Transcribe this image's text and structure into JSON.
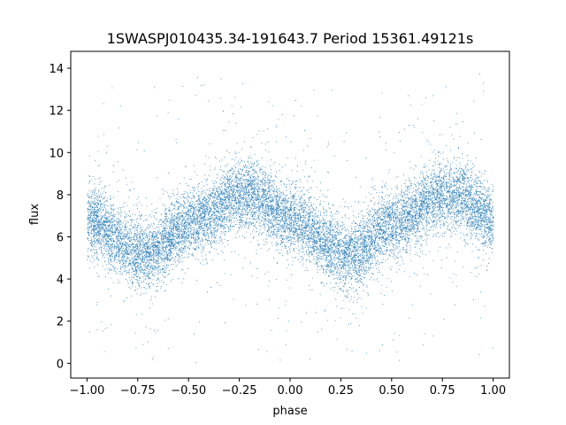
{
  "chart_data": {
    "type": "scatter",
    "title": "1SWASPJ010435.34-191643.7 Period 15361.49121s",
    "xlabel": "phase",
    "ylabel": "flux",
    "xlim": [
      -1.08,
      1.08
    ],
    "ylim": [
      -0.7,
      14.8
    ],
    "xticks": [
      -1.0,
      -0.75,
      -0.5,
      -0.25,
      0.0,
      0.25,
      0.5,
      0.75,
      1.0
    ],
    "xtick_labels": [
      "−1.00",
      "−0.75",
      "−0.50",
      "−0.25",
      "0.00",
      "0.25",
      "0.50",
      "0.75",
      "1.00"
    ],
    "yticks": [
      0,
      2,
      4,
      6,
      8,
      10,
      12,
      14
    ],
    "ytick_labels": [
      "0",
      "2",
      "4",
      "6",
      "8",
      "10",
      "12",
      "14"
    ],
    "grid": false,
    "marker_color": "#1f77b4",
    "series": [
      {
        "description_trend": [
          {
            "x": -1.0,
            "y": 6.8
          },
          {
            "x": -0.75,
            "y": 5.3
          },
          {
            "x": -0.7,
            "y": 5.2
          },
          {
            "x": -0.5,
            "y": 6.6
          },
          {
            "x": -0.25,
            "y": 7.9
          },
          {
            "x": -0.2,
            "y": 8.0
          },
          {
            "x": 0.0,
            "y": 6.8
          },
          {
            "x": 0.25,
            "y": 5.3
          },
          {
            "x": 0.3,
            "y": 5.2
          },
          {
            "x": 0.5,
            "y": 6.6
          },
          {
            "x": 0.75,
            "y": 7.9
          },
          {
            "x": 0.8,
            "y": 8.0
          },
          {
            "x": 1.0,
            "y": 6.8
          }
        ],
        "scatter_spread_core": 1.0,
        "scatter_range": [
          0,
          14
        ]
      }
    ]
  }
}
